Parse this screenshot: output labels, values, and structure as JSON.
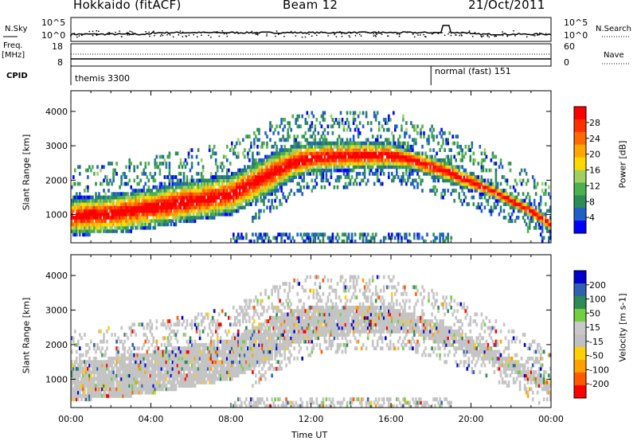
{
  "header": {
    "radar": "Hokkaido (fitACF)",
    "beam": "Beam 12",
    "date": "21/Oct/2011"
  },
  "stats_panel": {
    "left_labels": [
      "N.Sky",
      "Freq.",
      "[MHz]",
      "CPID"
    ],
    "right_labels": [
      "N.Search",
      "Nave"
    ],
    "left_ticks": [
      "10^5",
      "10^0",
      "18",
      "8"
    ],
    "right_ticks": [
      "10^5",
      "10^0",
      "60",
      "0"
    ],
    "cpid_entries": [
      {
        "name": "themis 3300",
        "start_hour": 0
      },
      {
        "name": "normal (fast) 151",
        "start_hour": 18
      }
    ]
  },
  "colors": {
    "power": [
      "#0000ff",
      "#1f5fc8",
      "#2e8b57",
      "#4caf50",
      "#a0d060",
      "#ffd800",
      "#ffa500",
      "#ff6a00",
      "#ff3000",
      "#ff0000"
    ],
    "velocity": [
      "#ff0000",
      "#ff5a00",
      "#ffa000",
      "#ffd000",
      "#c0c0c0",
      "#c8c8c8",
      "#70d040",
      "#2e8b57",
      "#3060b0",
      "#0000cc"
    ]
  },
  "chart_data": [
    {
      "type": "heatmap",
      "title": "",
      "xlabel": "",
      "ylabel": "Slant Range [km]",
      "xlim": [
        0,
        24
      ],
      "ylim": [
        180,
        4600
      ],
      "yticks": [
        "1000",
        "2000",
        "3000",
        "4000"
      ],
      "colorbar": {
        "label": "Power [dB]",
        "range": [
          0,
          32
        ],
        "ticks": [
          "28",
          "24",
          "20",
          "16",
          "12",
          "8",
          "4"
        ]
      },
      "echo_bands": [
        {
          "x": [
            0,
            2,
            4,
            6,
            8,
            9,
            10,
            11,
            12,
            14,
            16,
            17,
            18,
            19,
            20,
            21,
            22,
            23,
            24
          ],
          "range_low": [
            400,
            450,
            600,
            800,
            1000,
            1300,
            1600,
            2000,
            2200,
            2300,
            2350,
            2300,
            2100,
            1900,
            1700,
            1500,
            1200,
            900,
            500
          ],
          "range_high": [
            1500,
            1600,
            1800,
            2000,
            2200,
            2500,
            2800,
            3000,
            3100,
            3150,
            3100,
            2900,
            2700,
            2500,
            2200,
            1900,
            1600,
            1300,
            900
          ]
        }
      ]
    },
    {
      "type": "heatmap",
      "title": "",
      "xlabel": "Time UT",
      "ylabel": "Slant Range [km]",
      "xlim": [
        0,
        24
      ],
      "ylim": [
        180,
        4600
      ],
      "xticks": [
        "00:00",
        "04:00",
        "08:00",
        "12:00",
        "16:00",
        "20:00",
        "00:00"
      ],
      "yticks": [
        "1000",
        "2000",
        "3000",
        "4000"
      ],
      "colorbar": {
        "label": "Velocity [m s-1]",
        "range": [
          -250,
          250
        ],
        "ticks": [
          "200",
          "100",
          "50",
          "15",
          "-15",
          "-50",
          "-100",
          "-200"
        ]
      }
    }
  ]
}
